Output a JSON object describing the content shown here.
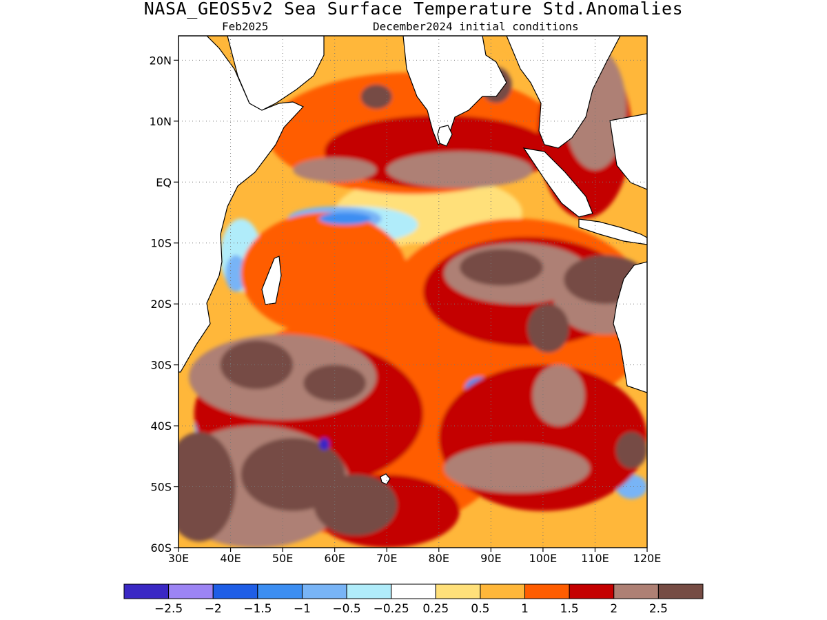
{
  "header": {
    "title": "NASA_GEOS5v2 Sea Surface Temperature Std.Anomalies",
    "valid_month": "Feb2025",
    "init": "December2024 initial conditions"
  },
  "map": {
    "lon_range": [
      30,
      120
    ],
    "lat_range": [
      -60,
      24
    ],
    "lat_ticks": [
      {
        "value": 20,
        "label": "20N"
      },
      {
        "value": 10,
        "label": "10N"
      },
      {
        "value": 0,
        "label": "EQ"
      },
      {
        "value": -10,
        "label": "10S"
      },
      {
        "value": -20,
        "label": "20S"
      },
      {
        "value": -30,
        "label": "30S"
      },
      {
        "value": -40,
        "label": "40S"
      },
      {
        "value": -50,
        "label": "50S"
      },
      {
        "value": -60,
        "label": "60S"
      }
    ],
    "lon_ticks": [
      {
        "value": 30,
        "label": "30E"
      },
      {
        "value": 40,
        "label": "40E"
      },
      {
        "value": 50,
        "label": "50E"
      },
      {
        "value": 60,
        "label": "60E"
      },
      {
        "value": 70,
        "label": "70E"
      },
      {
        "value": 80,
        "label": "80E"
      },
      {
        "value": 90,
        "label": "90E"
      },
      {
        "value": 100,
        "label": "100E"
      },
      {
        "value": 110,
        "label": "110E"
      },
      {
        "value": 120,
        "label": "120E"
      }
    ],
    "gridlines": "dotted",
    "land_color": "#ffffff",
    "coast_color": "#000000"
  },
  "colorbar": {
    "colors": [
      "#3a28c4",
      "#9c84f4",
      "#1f5ee6",
      "#3c8ef2",
      "#78b4f6",
      "#b0ecfa",
      "#ffffff",
      "#ffe07a",
      "#ffb73a",
      "#ff5d00",
      "#c40000",
      "#ae8074",
      "#764c44"
    ],
    "labels": [
      "−2.5",
      "−2",
      "−1.5",
      "−1",
      "−0.5",
      "−0.25",
      "0.25",
      "0.5",
      "1",
      "1.5",
      "2",
      "2.5"
    ]
  },
  "anomaly_regions": [
    {
      "lon": 34,
      "lat": -50,
      "rx": 7,
      "ry": 9,
      "level": 2.5
    },
    {
      "lon": 52,
      "lat": -48,
      "rx": 10,
      "ry": 6,
      "level": 2.5
    },
    {
      "lon": 64,
      "lat": -53,
      "rx": 8,
      "ry": 5,
      "level": 2.5
    },
    {
      "lon": 45,
      "lat": -30,
      "rx": 7,
      "ry": 4,
      "level": 2.5
    },
    {
      "lon": 60,
      "lat": -33,
      "rx": 6,
      "ry": 3,
      "level": 2.5
    },
    {
      "lon": 92,
      "lat": -14,
      "rx": 8,
      "ry": 3,
      "level": 2.5
    },
    {
      "lon": 112,
      "lat": -16,
      "rx": 8,
      "ry": 4,
      "level": 2.5
    },
    {
      "lon": 101,
      "lat": -24,
      "rx": 4,
      "ry": 4,
      "level": 2.5
    },
    {
      "lon": 68,
      "lat": 14,
      "rx": 3,
      "ry": 2,
      "level": 2.5
    },
    {
      "lon": 91,
      "lat": 16,
      "rx": 3,
      "ry": 3,
      "level": 2.5
    },
    {
      "lon": 117,
      "lat": -44,
      "rx": 3,
      "ry": 3,
      "level": 2.5
    },
    {
      "lon": 84,
      "lat": 2,
      "rx": 14,
      "ry": 3,
      "level": 2
    },
    {
      "lon": 60,
      "lat": 2,
      "rx": 8,
      "ry": 2,
      "level": 2
    },
    {
      "lon": 95,
      "lat": -15,
      "rx": 14,
      "ry": 5,
      "level": 2
    },
    {
      "lon": 112,
      "lat": -19,
      "rx": 10,
      "ry": 6,
      "level": 2
    },
    {
      "lon": 50,
      "lat": -32,
      "rx": 18,
      "ry": 7,
      "level": 2
    },
    {
      "lon": 45,
      "lat": -50,
      "rx": 18,
      "ry": 10,
      "level": 2
    },
    {
      "lon": 95,
      "lat": -47,
      "rx": 14,
      "ry": 4,
      "level": 2
    },
    {
      "lon": 110,
      "lat": 12,
      "rx": 6,
      "ry": 10,
      "level": 2
    },
    {
      "lon": 103,
      "lat": -35,
      "rx": 5,
      "ry": 5,
      "level": 2
    },
    {
      "lon": 80,
      "lat": 5,
      "rx": 22,
      "ry": 6,
      "level": 1.5
    },
    {
      "lon": 97,
      "lat": -18,
      "rx": 20,
      "ry": 9,
      "level": 1.5
    },
    {
      "lon": 55,
      "lat": -38,
      "rx": 22,
      "ry": 12,
      "level": 1.5
    },
    {
      "lon": 100,
      "lat": -42,
      "rx": 20,
      "ry": 12,
      "level": 1.5
    },
    {
      "lon": 108,
      "lat": 8,
      "rx": 9,
      "ry": 14,
      "level": 1.5
    },
    {
      "lon": 70,
      "lat": -54,
      "rx": 14,
      "ry": 6,
      "level": 1.5
    },
    {
      "lon": 75,
      "lat": 8,
      "rx": 28,
      "ry": 10,
      "level": 1
    },
    {
      "lon": 95,
      "lat": -22,
      "rx": 26,
      "ry": 16,
      "level": 1
    },
    {
      "lon": 65,
      "lat": -40,
      "rx": 30,
      "ry": 18,
      "level": 1
    },
    {
      "lon": 58,
      "lat": -15,
      "rx": 16,
      "ry": 10,
      "level": 1
    },
    {
      "lon": 76,
      "lat": -18,
      "rx": 10,
      "ry": 8,
      "level": 0.5
    },
    {
      "lon": 88,
      "lat": 18,
      "rx": 6,
      "ry": 4,
      "level": 0.5
    },
    {
      "lon": 78,
      "lat": -5,
      "rx": 18,
      "ry": 6,
      "level": 0.25
    },
    {
      "lon": 82,
      "lat": -25,
      "rx": 10,
      "ry": 5,
      "level": 0.25
    },
    {
      "lon": 64,
      "lat": -7,
      "rx": 12,
      "ry": 3,
      "level": -0.25
    },
    {
      "lon": 42,
      "lat": -12,
      "rx": 4,
      "ry": 6,
      "level": -0.25
    },
    {
      "lon": 60,
      "lat": -6,
      "rx": 9,
      "ry": 2,
      "level": -0.5
    },
    {
      "lon": 41,
      "lat": -15,
      "rx": 2,
      "ry": 3,
      "level": -0.5
    },
    {
      "lon": 38,
      "lat": -40,
      "rx": 5,
      "ry": 3,
      "level": -0.5
    },
    {
      "lon": 88,
      "lat": -34,
      "rx": 4,
      "ry": 2,
      "level": -0.5
    },
    {
      "lon": 58,
      "lat": -42,
      "rx": 4,
      "ry": 3,
      "level": -0.5
    },
    {
      "lon": 117,
      "lat": -50,
      "rx": 3,
      "ry": 2,
      "level": -0.5
    },
    {
      "lon": 104,
      "lat": 8,
      "rx": 2,
      "ry": 3,
      "level": -0.5
    },
    {
      "lon": 58,
      "lat": -42,
      "rx": 3,
      "ry": 2,
      "level": -1
    },
    {
      "lon": 88,
      "lat": -34,
      "rx": 3,
      "ry": 2,
      "level": -1
    },
    {
      "lon": 62,
      "lat": -6,
      "rx": 5,
      "ry": 1,
      "level": -1
    },
    {
      "lon": 58,
      "lat": -43,
      "rx": 1,
      "ry": 1,
      "level": -2.5
    }
  ]
}
